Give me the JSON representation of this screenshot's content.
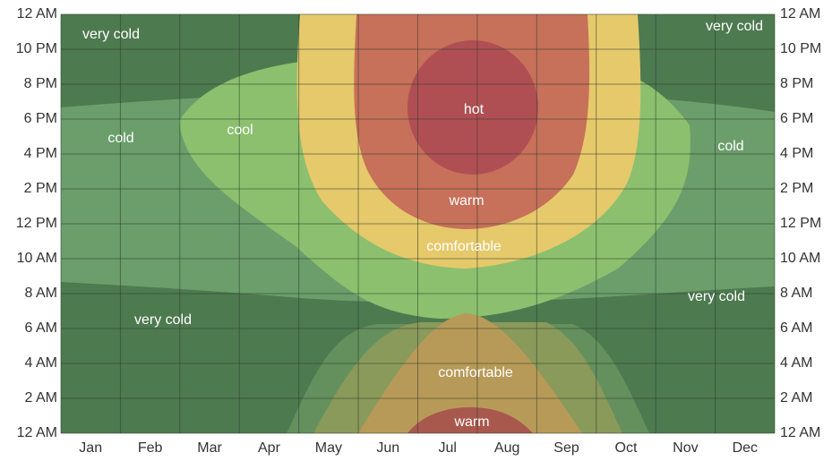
{
  "chart_data": {
    "type": "contour",
    "categories": [
      "Jan",
      "Feb",
      "Mar",
      "Apr",
      "May",
      "Jun",
      "Jul",
      "Aug",
      "Sep",
      "Oct",
      "Nov",
      "Dec"
    ],
    "ylim": [
      0,
      24
    ],
    "yticks": [
      {
        "value": 0,
        "label": "12 AM"
      },
      {
        "value": 2,
        "label": "2 AM"
      },
      {
        "value": 4,
        "label": "4 AM"
      },
      {
        "value": 6,
        "label": "6 AM"
      },
      {
        "value": 8,
        "label": "8 AM"
      },
      {
        "value": 10,
        "label": "10 AM"
      },
      {
        "value": 12,
        "label": "12 PM"
      },
      {
        "value": 14,
        "label": "2 PM"
      },
      {
        "value": 16,
        "label": "4 PM"
      },
      {
        "value": 18,
        "label": "6 PM"
      },
      {
        "value": 20,
        "label": "8 PM"
      },
      {
        "value": 22,
        "label": "10 PM"
      },
      {
        "value": 24,
        "label": "12 AM"
      }
    ],
    "grid": true,
    "annotations": [
      "very cold",
      "cold",
      "cool",
      "hot",
      "warm",
      "comfortable",
      "very cold",
      "comfortable",
      "warm",
      "very cold",
      "cold",
      "very cold"
    ]
  }
}
